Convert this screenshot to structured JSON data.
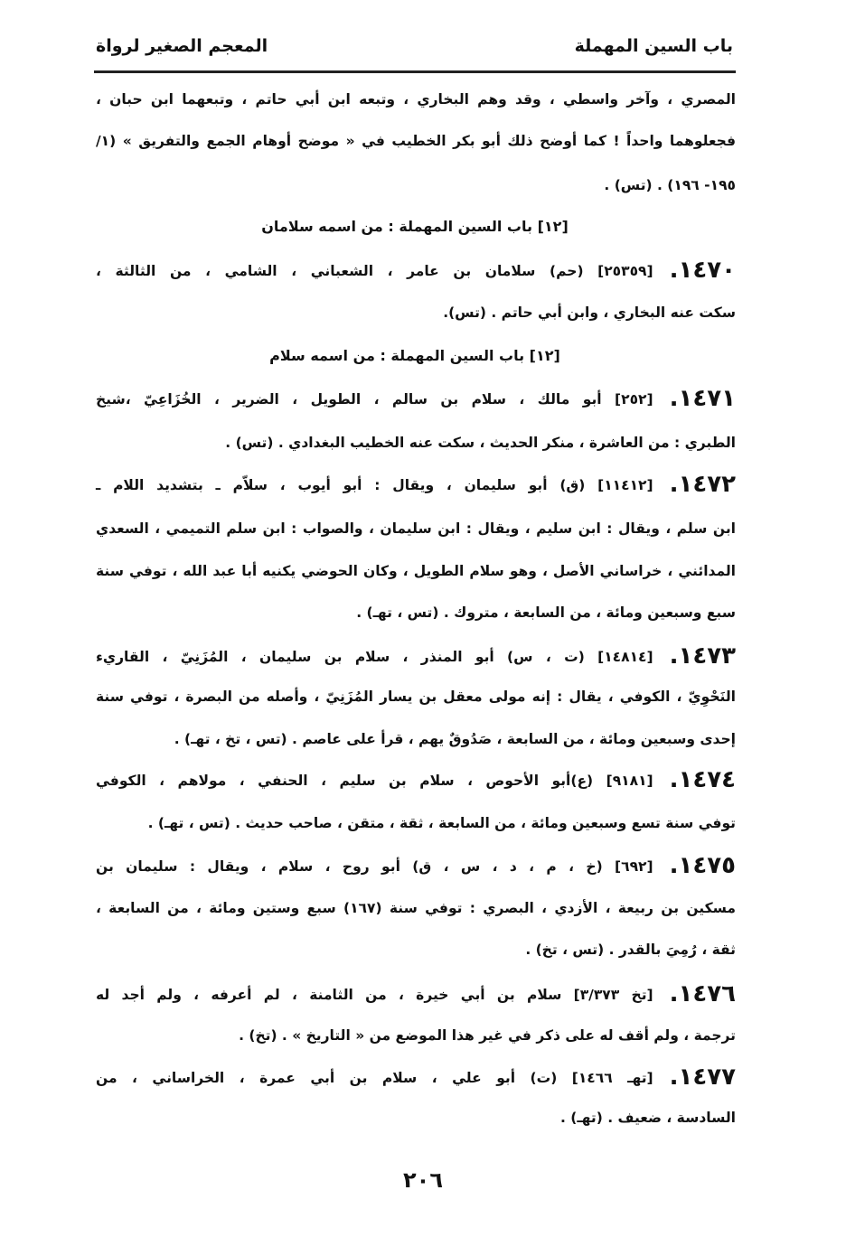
{
  "header": {
    "right": "باب السين المهملة",
    "left": "المعجم الصغير لرواة"
  },
  "intro": [
    "المصري ، وآخر واسطي ، وقد وهم البخاري ، وتبعه ابن أبي حاتم ، وتبعهما ابن حبان ،",
    "فجعلوهما واحداً ! كما أوضح ذلك أبو بكر الخطيب في « موضح أوهام الجمع والتفريق » (١/",
    "١٩٥- ١٩٦) . (تس) ."
  ],
  "headings": [
    "[١٢] باب السين المهملة : من اسمه سلامان",
    "[١٢] باب السين المهملة : من اسمه سلام"
  ],
  "entries": [
    {
      "num": "١٤٧٠.",
      "lines": [
        "[٢٥٣٥٩] (حم) سلامان بن عامر ، الشعباني ، الشامي ، من الثالثة ،",
        "سكت عنه البخاري ، وابن أبي حاتم . (تس)."
      ]
    },
    {
      "num": "١٤٧١.",
      "lines": [
        "[٢٥٢] أبو مالك ، سلام بن سالم ، الطويل ، الضرير ، الخُزَاعِيّ ،شيخ",
        "الطبري : من العاشرة ، منكر الحديث ، سكت عنه الخطيب البغدادي . (تس) ."
      ]
    },
    {
      "num": "١٤٧٢.",
      "lines": [
        "[١١٤١٢] (ق) أبو سليمان ، ويقال : أبو أيوب ، سلاّم ـ بتشديد اللام ـ",
        "ابن سلم ، ويقال : ابن سليم ، ويقال : ابن سليمان ، والصواب : ابن سلم التميمي ، السعدي",
        "المدائني ، خراساني الأصل ، وهو سلام الطويل ، وكان الحوضي يكنيه أبا عبد الله ، توفي سنة",
        "سبع وسبعين ومائة ، من السابعة ، متروك . (تس ، تهـ) ."
      ]
    },
    {
      "num": "١٤٧٣.",
      "lines": [
        "[١٤٨١٤] (ت ، س) أبو المنذر ، سلام بن سليمان ، المُزَنِيّ ، القاريء",
        "النَحْوِيّ ، الكوفي ، يقال : إنه مولى معقل بن يسار المُزَنِيّ ، وأصله من البصرة ، توفي سنة",
        "إحدى وسبعين ومائة ، من السابعة ، صَدُوقٌ يهم ، قرأ على عاصم . (تس ، تخ ، تهـ) ."
      ]
    },
    {
      "num": "١٤٧٤.",
      "lines": [
        "[٩١٨١] (ع)أبو الأحوص ، سلام بن سليم ، الحنفي ، مولاهم ، الكوفي",
        "توفي سنة تسع وسبعين ومائة ، من السابعة ، ثقة ، متقن ، صاحب حديث . (تس ، تهـ) ."
      ]
    },
    {
      "num": "١٤٧٥.",
      "lines": [
        "[٦٩٢] (خ ، م ، د ، س ، ق) أبو روح ، سلام ، ويقال : سليمان بن",
        "مسكين بن ربيعة ، الأزدي ، البصري : توفي سنة (١٦٧) سبع وستين ومائة ، من السابعة ،",
        "ثقة ، رُمِيَ بالقدر . (تس ، تخ) ."
      ]
    },
    {
      "num": "١٤٧٦.",
      "lines": [
        "[تخ ٣/٣٧٣] سلام بن أبي خيرة ، من الثامنة ، لم أعرفه ، ولم أجد له",
        "ترجمة ، ولم أقف له على ذكر في غير هذا الموضع من « التاريخ » . (تخ) ."
      ]
    },
    {
      "num": "١٤٧٧.",
      "lines": [
        "[تهـ ١٤٦٦] (ت) أبو علي ، سلام بن أبي عمرة ، الخراساني ، من",
        "السادسة ، ضعيف . (تهـ) ."
      ]
    }
  ],
  "page_number": "٢٠٦"
}
